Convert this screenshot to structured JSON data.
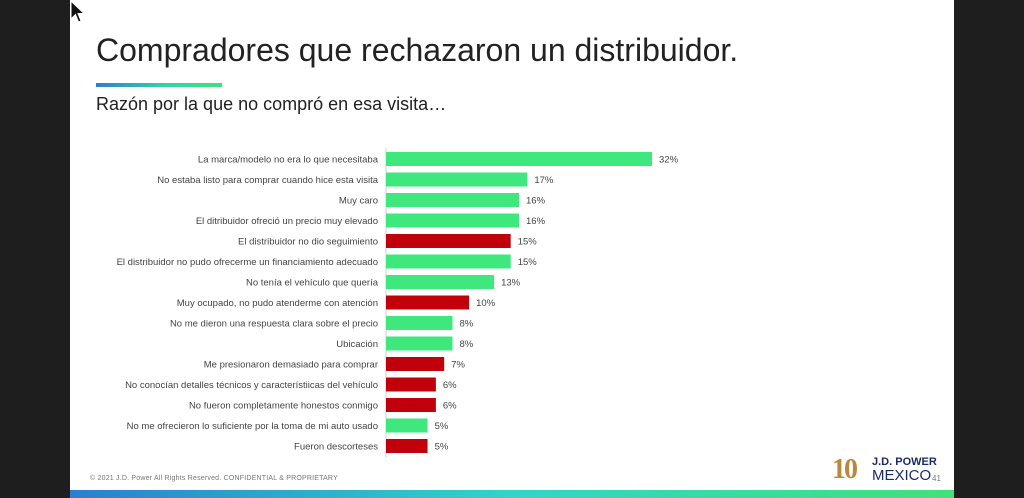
{
  "title": "Compradores que rechazaron un distribuidor.",
  "subtitle": "Razón por la que no compró en esa visita…",
  "footer": "© 2021 J.D. Power All Rights Reserved. CONFIDENTIAL & PROPRIETARY",
  "page_number": "41",
  "logo": {
    "ten": "10",
    "brand": "J.D. POWER",
    "country": "MEXICO"
  },
  "colors": {
    "green": "#3ee87c",
    "red": "#c0000a"
  },
  "icons": {
    "cursor": "mouse-pointer-icon"
  },
  "chart_data": {
    "type": "bar",
    "orientation": "horizontal",
    "title": "",
    "xlabel": "",
    "ylabel": "",
    "xlim": [
      0,
      32
    ],
    "grid": false,
    "categories": [
      "La marca/modelo no era lo que necesitaba",
      "No estaba listo para comprar cuando hice esta visita",
      "Muy caro",
      "El ditribuidor ofreció un precio muy elevado",
      "El distribuidor no dio seguimiento",
      "El distribuidor no pudo ofrecerme un financiamiento adecuado",
      "No tenía el vehículo que quería",
      "Muy ocupado, no pudo atenderme con atención",
      "No me dieron una respuesta clara sobre el precio",
      "Ubicación",
      "Me presionaron demasiado para comprar",
      "No conocían detalles técnicos y característiicas del vehículo",
      "No fueron completamente honestos conmigo",
      "No me ofrecieron lo suficiente por la toma de mi auto usado",
      "Fueron descorteses"
    ],
    "values": [
      32,
      17,
      16,
      16,
      15,
      15,
      13,
      10,
      8,
      8,
      7,
      6,
      6,
      5,
      5
    ],
    "labels": [
      "32%",
      "17%",
      "16%",
      "16%",
      "15%",
      "15%",
      "13%",
      "10%",
      "8%",
      "8%",
      "7%",
      "6%",
      "6%",
      "5%",
      "5%"
    ],
    "bar_colors": [
      "green",
      "green",
      "green",
      "green",
      "red",
      "green",
      "green",
      "red",
      "green",
      "green",
      "red",
      "red",
      "red",
      "green",
      "red"
    ]
  }
}
